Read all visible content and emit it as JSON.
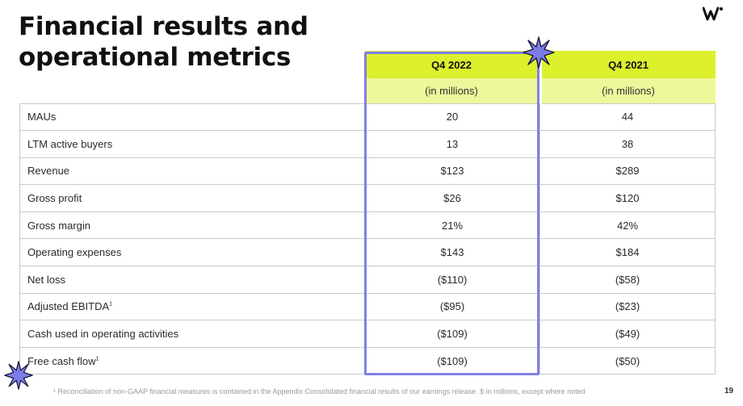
{
  "slide": {
    "title": "Financial results and operational metrics",
    "page_number": "19",
    "footnote": "¹ Reconciliation of non-GAAP financial measures is contained in the Appendix Consolidated financial results of our earnings release. $ in millions, except where noted"
  },
  "logo": {
    "icon": "wallapop-w-logo-icon"
  },
  "table": {
    "columns": [
      {
        "header": "Q4 2022",
        "subheader": "(in millions)"
      },
      {
        "header": "Q4 2021",
        "subheader": "(in millions)"
      }
    ],
    "rows": [
      {
        "label": "MAUs",
        "sup": "",
        "values": [
          "20",
          "44"
        ]
      },
      {
        "label": "LTM active buyers",
        "sup": "",
        "values": [
          "13",
          "38"
        ]
      },
      {
        "label": "Revenue",
        "sup": "",
        "values": [
          "$123",
          "$289"
        ]
      },
      {
        "label": "Gross profit",
        "sup": "",
        "values": [
          "$26",
          "$120"
        ]
      },
      {
        "label": "Gross margin",
        "sup": "",
        "values": [
          "21%",
          "42%"
        ]
      },
      {
        "label": "Operating expenses",
        "sup": "",
        "values": [
          "$143",
          "$184"
        ]
      },
      {
        "label": "Net loss",
        "sup": "",
        "values": [
          "($110)",
          "($58)"
        ]
      },
      {
        "label": "Adjusted EBITDA",
        "sup": "1",
        "values": [
          "($95)",
          "($23)"
        ]
      },
      {
        "label": "Cash used in operating activities",
        "sup": "",
        "values": [
          "($109)",
          "($49)"
        ]
      },
      {
        "label": "Free cash flow",
        "sup": "1",
        "values": [
          "($109)",
          "($50)"
        ]
      }
    ]
  },
  "colors": {
    "header_bg": "#dcf02c",
    "subheader_bg": "#eef79a",
    "highlight": "#8080e6"
  }
}
